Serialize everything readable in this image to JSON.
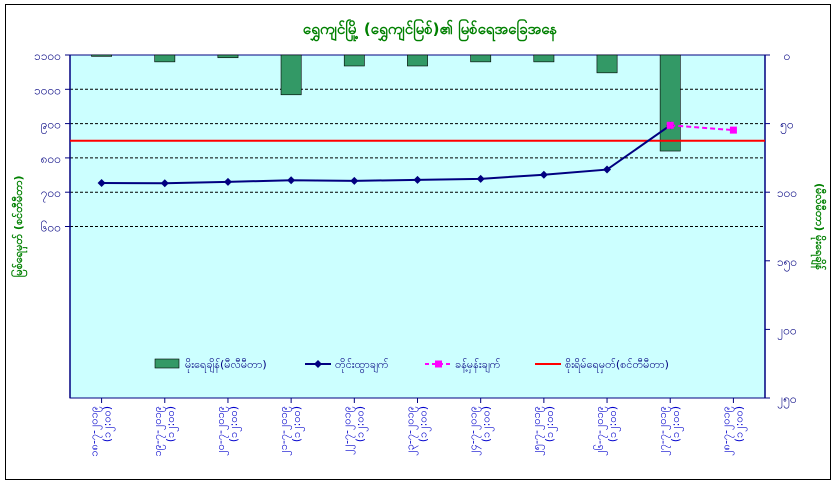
{
  "chart_data": {
    "type": "bar+line",
    "title": "ရွှေကျင်မြို့ (ရွှေကျင်မြစ်)၏ မြစ်ရေအခြေအနေ",
    "left_axis_label": "မြစ်ရေမှတ် (စင်တီမီတာ)",
    "right_axis_label": "(မီလီမီတာ) မိုးရေချိန်",
    "left_axis": {
      "min": 100,
      "max": 1100,
      "ticks": [
        "၁၁၀၀",
        "၁၀၀၀",
        "၉၀၀",
        "၈၀၀",
        "၇၀၀",
        "၆၀၀"
      ],
      "tick_values": [
        1100,
        1000,
        900,
        800,
        700,
        600
      ]
    },
    "right_axis": {
      "min": 0,
      "max": 250,
      "inverted": true,
      "ticks": [
        "၀",
        "၅၀",
        "၁၀၀",
        "၁၅၀",
        "၂၀၀",
        "၂၅၀"
      ],
      "tick_values": [
        0,
        50,
        100,
        150,
        200,
        250
      ]
    },
    "categories": [
      "၁၈-၇-၂၀၁၉ (၁၂:၀၀)",
      "၁၉-၇-၂၀၁၉ (၁၂:၀၀)",
      "၂၀-၇-၂၀၁၉ (၁၂:၀၀)",
      "၂၁-၇-၂၀၁၉ (၁၂:၀၀)",
      "၂၂-၇-၂၀၁၉ (၁၂:၀၀)",
      "၂၃-၇-၂၀၁၉ (၁၂:၀၀)",
      "၂၄-၇-၂၀၁၉ (၁၂:၀၀)",
      "၂၅-၇-၂၀၁၉ (၁၂:၀၀)",
      "၂၆-၇-၂၀၁၉ (၁၂:၀၀)",
      "၂၇-၇-၂၀၁၉ (၁၂:၀၀)",
      "၂၈-၇-၂၀၁၉ (၁၂:၀၀)"
    ],
    "series": [
      {
        "name": "မိုးရေချိန်(မီလီမီတာ)",
        "kind": "bar",
        "axis": "right",
        "color": "#339966",
        "values": [
          1,
          5,
          2,
          29,
          8,
          8,
          5,
          5,
          13,
          70,
          null
        ]
      },
      {
        "name": "တိုင်းထွာချက်",
        "kind": "line",
        "axis": "left",
        "color": "#000080",
        "values": [
          727,
          726,
          730,
          735,
          733,
          736,
          739,
          751,
          766,
          895,
          null
        ]
      },
      {
        "name": "ခန့်မှန်းချက်",
        "kind": "line-dashed",
        "axis": "left",
        "color": "#ff00ff",
        "values": [
          null,
          null,
          null,
          null,
          null,
          null,
          null,
          null,
          null,
          895,
          881
        ]
      },
      {
        "name": "စိုးရိမ်ရေမှတ်(စင်တီမီတာ)",
        "kind": "hline",
        "axis": "left",
        "color": "#ff0000",
        "value": 850
      }
    ],
    "grid": true,
    "legend_position": "bottom-inside",
    "plot_background": "#ccffff"
  }
}
